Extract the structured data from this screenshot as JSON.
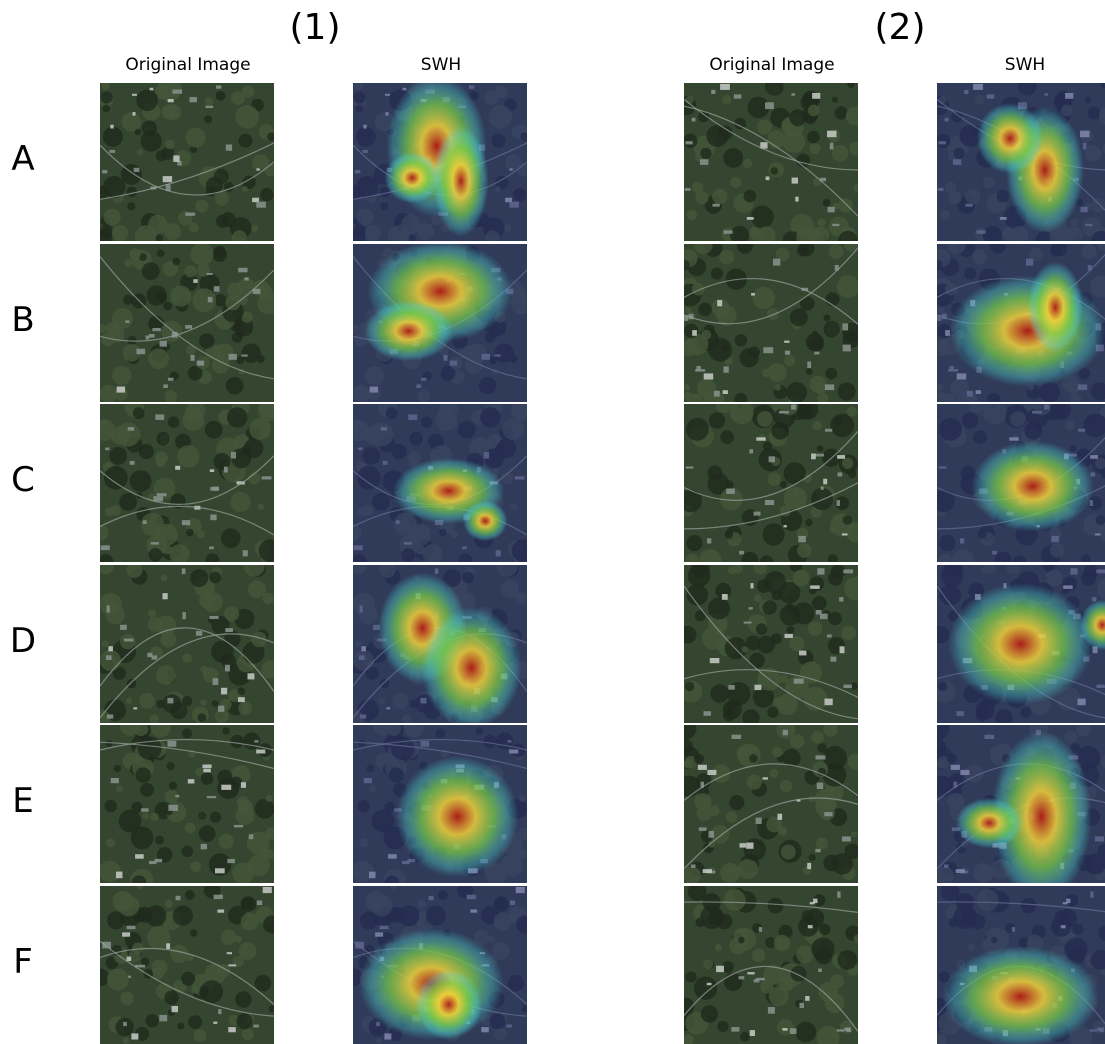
{
  "groups": [
    {
      "label": "(1)",
      "headers": [
        "Original Image",
        "SWH"
      ]
    },
    {
      "label": "(2)",
      "headers": [
        "Original Image",
        "SWH"
      ]
    }
  ],
  "rows": [
    "A",
    "B",
    "C",
    "D",
    "E",
    "F"
  ],
  "palette": {
    "forest_dark": "#1f2b1d",
    "forest_mid": "#34462f",
    "urban_gray": "#8a938e",
    "overlay_blue": "#2a2f8f",
    "heat_cyan": "#4fd6d2",
    "heat_green": "#7ad04a",
    "heat_yellow": "#f2d23a",
    "heat_red": "#b01c16"
  }
}
